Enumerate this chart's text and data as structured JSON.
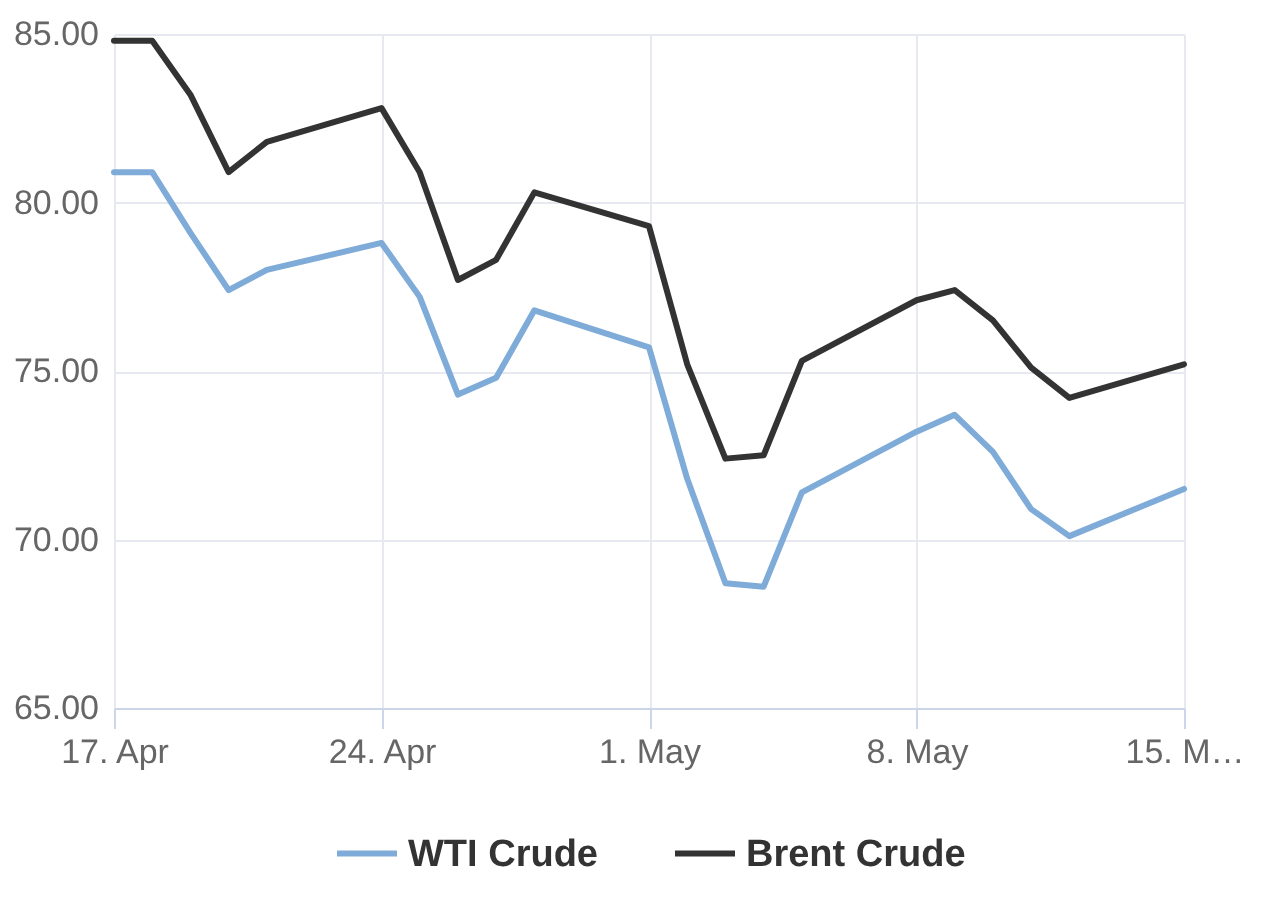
{
  "chart_data": {
    "type": "line",
    "x": [
      "--04-17",
      "--04-18",
      "--04-19",
      "--04-20",
      "--04-21",
      "--04-24",
      "--04-25",
      "--04-26",
      "--04-27",
      "--04-28",
      "--05-01",
      "--05-02",
      "--05-03",
      "--05-04",
      "--05-05",
      "--05-08",
      "--05-09",
      "--05-10",
      "--05-11",
      "--05-12",
      "--05-15"
    ],
    "xlim": [
      "--04-17",
      "--05-15"
    ],
    "xticks": [
      {
        "value": "--04-17",
        "label": "17. Apr"
      },
      {
        "value": "--04-24",
        "label": "24. Apr"
      },
      {
        "value": "--05-01",
        "label": "1. May"
      },
      {
        "value": "--05-08",
        "label": "8. May"
      },
      {
        "value": "--05-15",
        "label": "15. M…"
      }
    ],
    "ylim": [
      65,
      85
    ],
    "yticks": [
      {
        "value": 85,
        "label": "85.00"
      },
      {
        "value": 80,
        "label": "80.00"
      },
      {
        "value": 75,
        "label": "75.00"
      },
      {
        "value": 70,
        "label": "70.00"
      },
      {
        "value": 65,
        "label": "65.00"
      }
    ],
    "grid": true,
    "legend": "bottom",
    "marker": "none",
    "line_style": "solid",
    "series": [
      {
        "name": "WTI Crude",
        "color": "#7fabd9",
        "values": [
          80.9,
          80.9,
          79.1,
          77.4,
          78.0,
          78.8,
          77.2,
          74.3,
          74.8,
          76.8,
          75.7,
          71.8,
          68.7,
          68.6,
          71.4,
          73.2,
          73.7,
          72.6,
          70.9,
          70.1,
          71.5
        ]
      },
      {
        "name": "Brent Crude",
        "color": "#333333",
        "values": [
          84.8,
          84.8,
          83.2,
          80.9,
          81.8,
          82.8,
          80.9,
          77.7,
          78.3,
          80.3,
          79.3,
          75.2,
          72.4,
          72.5,
          75.3,
          77.1,
          77.4,
          76.5,
          75.1,
          74.2,
          75.2
        ]
      }
    ]
  }
}
